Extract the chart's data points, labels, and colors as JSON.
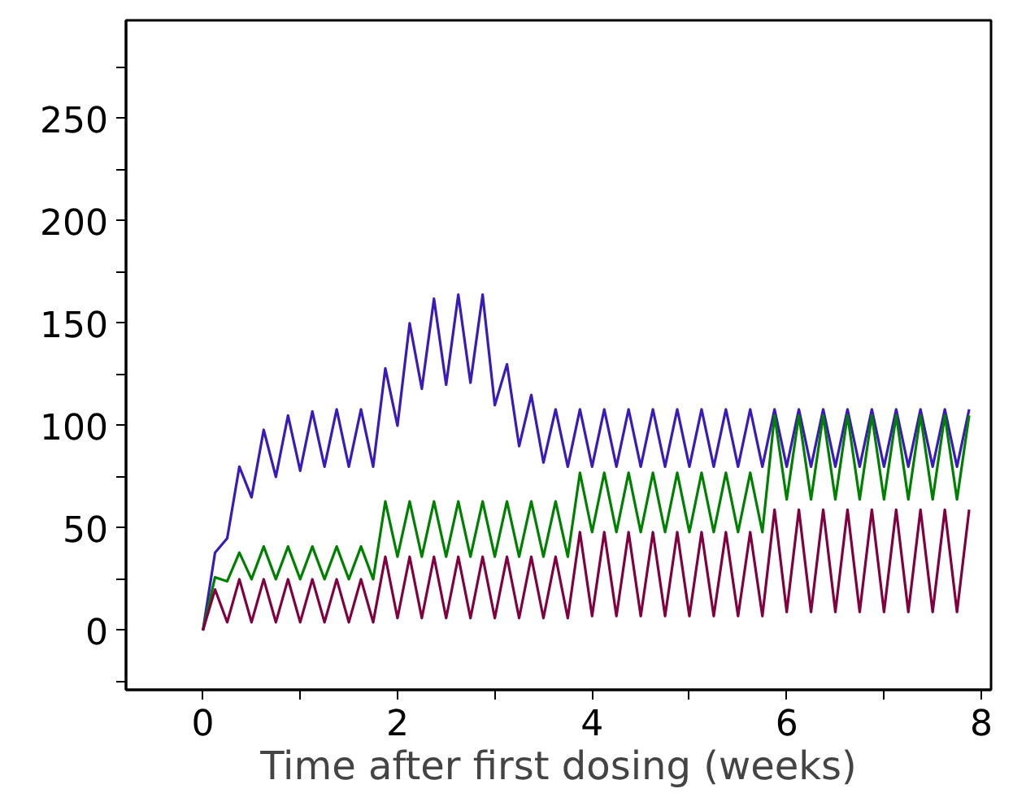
{
  "chart_data": {
    "type": "line",
    "xlabel": "Time after first dosing (weeks)",
    "x": [
      0,
      0.125,
      0.25,
      0.375,
      0.5,
      0.625,
      0.75,
      0.875,
      1,
      1.125,
      1.25,
      1.375,
      1.5,
      1.625,
      1.75,
      1.875,
      2,
      2.125,
      2.25,
      2.375,
      2.5,
      2.625,
      2.75,
      2.875,
      3,
      3.125,
      3.25,
      3.375,
      3.5,
      3.625,
      3.75,
      3.875,
      4,
      4.125,
      4.25,
      4.375,
      4.5,
      4.625,
      4.75,
      4.875,
      5,
      5.125,
      5.25,
      5.375,
      5.5,
      5.625,
      5.75,
      5.875,
      6,
      6.125,
      6.25,
      6.375,
      6.5,
      6.625,
      6.75,
      6.875,
      7,
      7.125,
      7.25,
      7.375,
      7.5,
      7.625,
      7.75,
      7.875
    ],
    "series": [
      {
        "color": "#3a1ab8",
        "values": [
          0,
          38,
          45,
          80,
          65,
          98,
          75,
          105,
          78,
          107,
          80,
          108,
          80,
          108,
          80,
          128,
          100,
          150,
          118,
          162,
          120,
          164,
          121,
          164,
          110,
          130,
          90,
          115,
          82,
          108,
          80,
          108,
          80,
          108,
          80,
          108,
          80,
          108,
          80,
          108,
          80,
          108,
          80,
          108,
          80,
          108,
          80,
          108,
          80,
          108,
          80,
          108,
          80,
          108,
          80,
          108,
          80,
          108,
          80,
          108,
          80,
          108,
          80,
          108
        ]
      },
      {
        "color": "#008000",
        "values": [
          0,
          26,
          24,
          38,
          25,
          41,
          25,
          41,
          25,
          41,
          25,
          41,
          25,
          41,
          25,
          63,
          36,
          63,
          36,
          63,
          36,
          63,
          36,
          63,
          36,
          63,
          36,
          63,
          36,
          63,
          36,
          77,
          48,
          77,
          48,
          77,
          48,
          77,
          48,
          77,
          48,
          77,
          48,
          77,
          48,
          77,
          48,
          105,
          64,
          105,
          64,
          105,
          64,
          105,
          64,
          105,
          64,
          105,
          64,
          105,
          64,
          105,
          64,
          105
        ]
      },
      {
        "color": "#800040",
        "values": [
          0,
          20,
          4,
          25,
          4,
          25,
          4,
          25,
          4,
          25,
          4,
          25,
          4,
          25,
          4,
          36,
          6,
          36,
          6,
          36,
          6,
          36,
          6,
          36,
          6,
          36,
          6,
          36,
          6,
          36,
          6,
          48,
          7,
          48,
          7,
          48,
          7,
          48,
          7,
          48,
          7,
          48,
          7,
          48,
          7,
          48,
          7,
          59,
          9,
          59,
          9,
          59,
          9,
          59,
          9,
          59,
          9,
          59,
          9,
          59,
          9,
          59,
          9,
          59
        ]
      }
    ],
    "xlim": [
      -0.79,
      8.1
    ],
    "ylim": [
      -29,
      298
    ],
    "xticks": [
      0,
      {
        "value": 1,
        "label": null
      },
      2,
      {
        "value": 3,
        "label": null
      },
      4,
      {
        "value": 5,
        "label": null
      },
      6,
      {
        "value": 7,
        "label": null
      },
      8
    ],
    "yticks": [
      {
        "value": -25,
        "label": null
      },
      0,
      {
        "value": 25,
        "label": null
      },
      50,
      {
        "value": 75,
        "label": null
      },
      100,
      {
        "value": 125,
        "label": null
      },
      150,
      {
        "value": 175,
        "label": null
      },
      200,
      {
        "value": 225,
        "label": null
      },
      250,
      {
        "value": 275,
        "label": null
      }
    ],
    "grid": false,
    "marker": "none",
    "line_style": "solid"
  }
}
